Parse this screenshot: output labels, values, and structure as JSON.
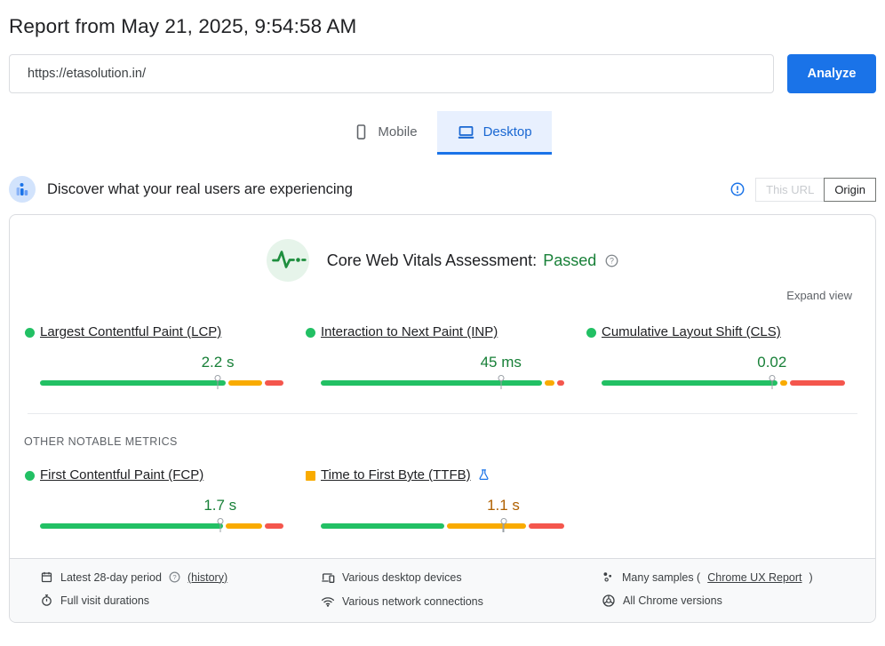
{
  "header": {
    "title": "Report from May 21, 2025, 9:54:58 AM"
  },
  "url_bar": {
    "value": "https://etasolution.in/",
    "analyze_label": "Analyze"
  },
  "tabs": [
    {
      "label": "Mobile",
      "active": false
    },
    {
      "label": "Desktop",
      "active": true
    }
  ],
  "field_section": {
    "heading": "Discover what your real users are experiencing",
    "toggle": {
      "this_url_label": "This URL",
      "origin_label": "Origin",
      "selected": "Origin"
    }
  },
  "cwv": {
    "assessment_label": "Core Web Vitals Assessment:",
    "assessment_value": "Passed",
    "expand_view_label": "Expand view",
    "other_metrics_label": "OTHER NOTABLE METRICS"
  },
  "metrics": [
    {
      "id": "lcp",
      "label": "Largest Contentful Paint (LCP)",
      "value": "2.2 s",
      "status": "good",
      "indicator_shape": "circle",
      "indicator_color": "#22c064",
      "value_color": "#188038",
      "distribution": {
        "good": 78,
        "needs_improvement": 14,
        "poor": 8
      },
      "marker_pct": 73
    },
    {
      "id": "inp",
      "label": "Interaction to Next Paint (INP)",
      "value": "45 ms",
      "status": "good",
      "indicator_shape": "circle",
      "indicator_color": "#22c064",
      "value_color": "#188038",
      "distribution": {
        "good": 93,
        "needs_improvement": 4,
        "poor": 3
      },
      "marker_pct": 74
    },
    {
      "id": "cls",
      "label": "Cumulative Layout Shift (CLS)",
      "value": "0.02",
      "status": "good",
      "indicator_shape": "circle",
      "indicator_color": "#22c064",
      "value_color": "#188038",
      "distribution": {
        "good": 74,
        "needs_improvement": 3,
        "poor": 23
      },
      "marker_pct": 70
    },
    {
      "id": "fcp",
      "label": "First Contentful Paint (FCP)",
      "value": "1.7 s",
      "status": "good",
      "indicator_shape": "circle",
      "indicator_color": "#22c064",
      "value_color": "#188038",
      "distribution": {
        "good": 77,
        "needs_improvement": 15,
        "poor": 8
      },
      "marker_pct": 74
    },
    {
      "id": "ttfb",
      "label": "Time to First Byte (TTFB)",
      "value": "1.1 s",
      "status": "needs_improvement",
      "indicator_shape": "square",
      "indicator_color": "#f9ab00",
      "value_color": "#b06000",
      "experimental": true,
      "distribution": {
        "good": 52,
        "needs_improvement": 33,
        "poor": 15
      },
      "marker_pct": 75
    }
  ],
  "footer": {
    "period_text": "Latest 28-day period",
    "history_link": "(history)",
    "durations_text": "Full visit durations",
    "devices_text": "Various desktop devices",
    "network_text": "Various network connections",
    "samples_prefix": "Many samples (",
    "samples_link": "Chrome UX Report",
    "samples_suffix": ")",
    "versions_text": "All Chrome versions"
  },
  "colors": {
    "accent_blue": "#1a73e8",
    "tab_active_bg": "#e8f0fe",
    "good_green_text": "#188038",
    "bar_good": "#22c064",
    "bar_needs_improvement": "#f9ab00",
    "bar_poor": "#f4564d",
    "ni_value_text": "#b06000"
  }
}
